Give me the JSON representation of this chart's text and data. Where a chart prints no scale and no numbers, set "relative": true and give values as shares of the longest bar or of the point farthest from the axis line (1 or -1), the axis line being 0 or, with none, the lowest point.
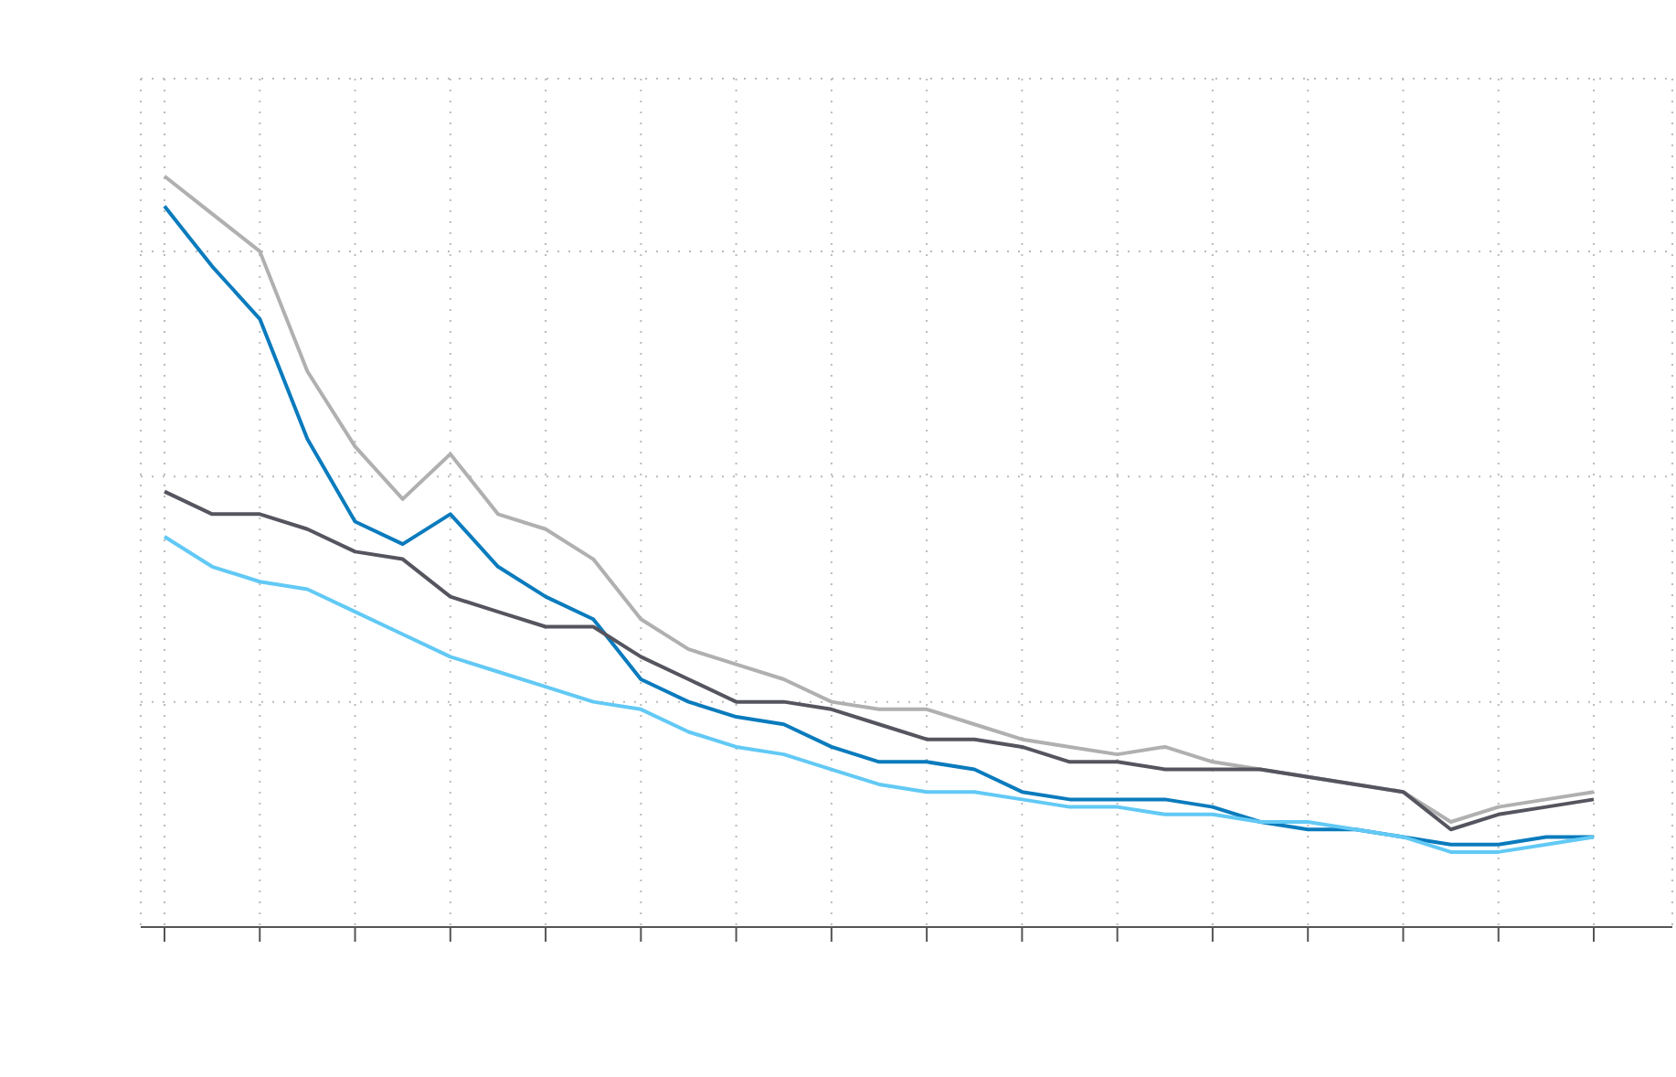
{
  "chart_data": {
    "type": "line",
    "relative": true,
    "grid": true,
    "marker": "none",
    "line_style": "solid",
    "categories": [
      null,
      null,
      null,
      null,
      null,
      null,
      null,
      null,
      null,
      null,
      null,
      null,
      null,
      null,
      null,
      null,
      null,
      null,
      null,
      null,
      null,
      null,
      null,
      null,
      null,
      null,
      null,
      null,
      null,
      null,
      null
    ],
    "series": [
      {
        "color": "#b0b0b0",
        "values": [
          1.0,
          0.95,
          0.9,
          0.74,
          0.64,
          0.57,
          0.63,
          0.55,
          0.53,
          0.49,
          0.41,
          0.37,
          0.35,
          0.33,
          0.3,
          0.29,
          0.29,
          0.27,
          0.25,
          0.24,
          0.23,
          0.24,
          0.22,
          0.21,
          0.2,
          0.19,
          0.18,
          0.14,
          0.16,
          0.17,
          0.18
        ]
      },
      {
        "color": "#0a7bbd",
        "values": [
          0.96,
          0.88,
          0.81,
          0.65,
          0.54,
          0.51,
          0.55,
          0.48,
          0.44,
          0.41,
          0.33,
          0.3,
          0.28,
          0.27,
          0.24,
          0.22,
          0.22,
          0.21,
          0.18,
          0.17,
          0.17,
          0.17,
          0.16,
          0.14,
          0.13,
          0.13,
          0.12,
          0.11,
          0.11,
          0.12,
          0.12
        ]
      },
      {
        "color": "#55555f",
        "values": [
          0.58,
          0.55,
          0.55,
          0.53,
          0.5,
          0.49,
          0.44,
          0.42,
          0.4,
          0.4,
          0.36,
          0.33,
          0.3,
          0.3,
          0.29,
          0.27,
          0.25,
          0.25,
          0.24,
          0.22,
          0.22,
          0.21,
          0.21,
          0.21,
          0.2,
          0.19,
          0.18,
          0.13,
          0.15,
          0.16,
          0.17
        ]
      },
      {
        "color": "#62c9f5",
        "values": [
          0.52,
          0.48,
          0.46,
          0.45,
          0.42,
          0.39,
          0.36,
          0.34,
          0.32,
          0.3,
          0.29,
          0.26,
          0.24,
          0.23,
          0.21,
          0.19,
          0.18,
          0.18,
          0.17,
          0.16,
          0.16,
          0.15,
          0.15,
          0.14,
          0.14,
          0.13,
          0.12,
          0.1,
          0.1,
          0.11,
          0.12
        ]
      }
    ]
  }
}
